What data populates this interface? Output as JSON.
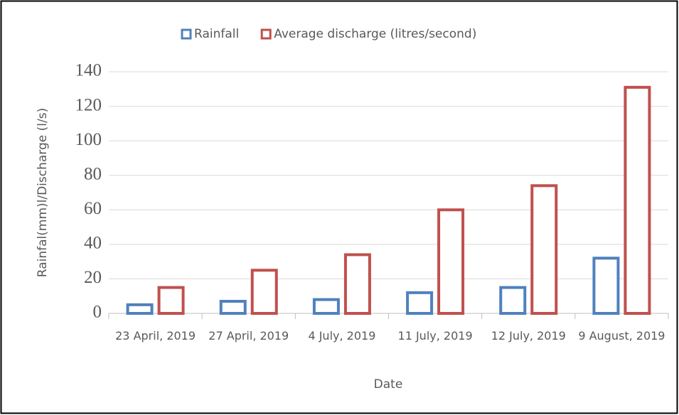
{
  "chart_data": {
    "type": "bar",
    "x_label": "Date",
    "y_label": "Rainfal(mm)l/Discharge (l/s)",
    "categories": [
      "23 April, 2019",
      "27 April, 2019",
      "4 July, 2019",
      "11 July, 2019",
      "12 July, 2019",
      "9 August, 2019"
    ],
    "series": [
      {
        "name": "Rainfall",
        "color": "#4f81bd",
        "values": [
          5,
          7,
          8,
          12,
          15,
          32
        ]
      },
      {
        "name": "Average discharge (litres/second)",
        "color": "#c0504d",
        "values": [
          15,
          25,
          34,
          60,
          74,
          131
        ]
      }
    ],
    "ylim": [
      0,
      140
    ],
    "yticks": [
      0,
      20,
      40,
      60,
      80,
      100,
      120,
      140
    ],
    "grid": true,
    "legend": "top"
  }
}
